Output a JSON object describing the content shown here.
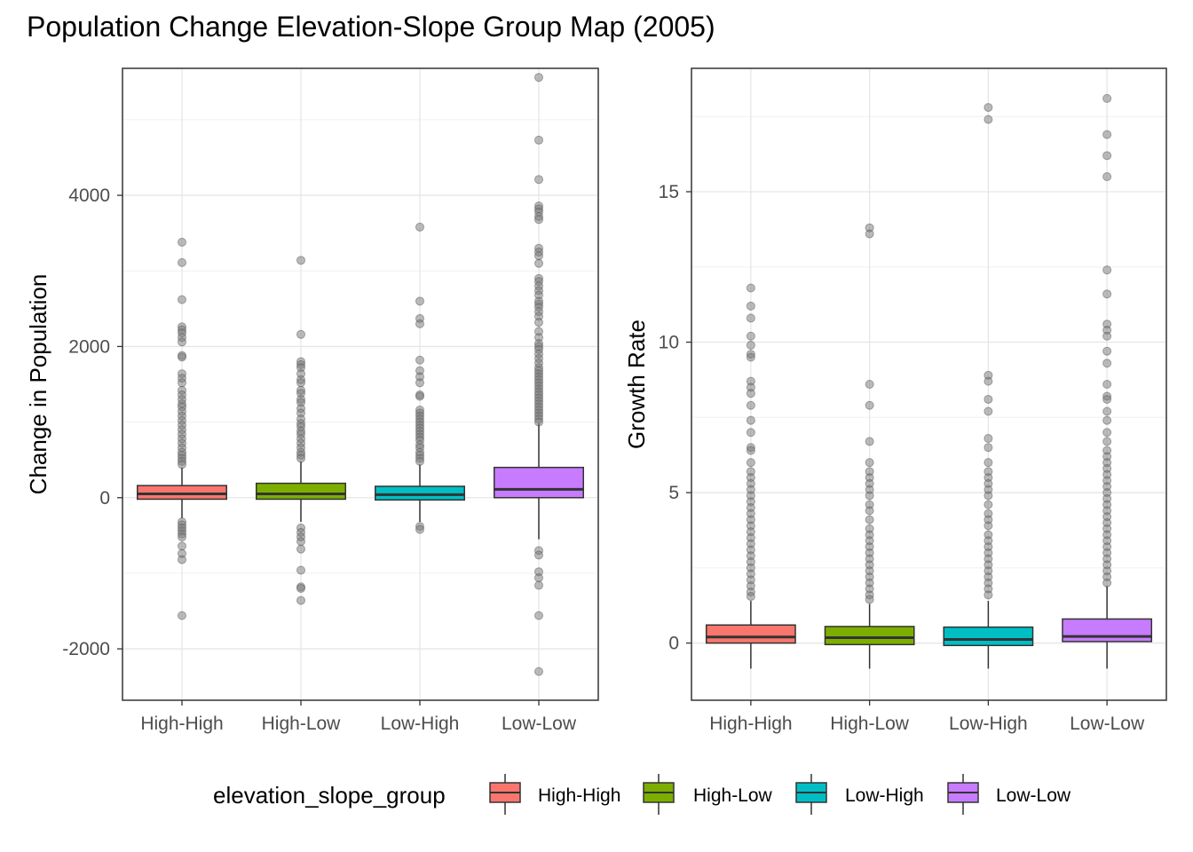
{
  "chart_data": {
    "type": "box",
    "title": "Population Change Elevation-Slope Group Map (2005)",
    "categories": [
      "High-High",
      "High-Low",
      "Low-High",
      "Low-Low"
    ],
    "colors": [
      "#F8766D",
      "#7CAE00",
      "#00BFC4",
      "#C77CFF"
    ],
    "legend": {
      "title": "elevation_slope_group",
      "position": "bottom",
      "entries": [
        "High-High",
        "High-Low",
        "Low-High",
        "Low-Low"
      ]
    },
    "grid": true,
    "panels": [
      {
        "ylabel": "Change in Population",
        "ylim": [
          -2680,
          5680
        ],
        "yticks": [
          -2000,
          0,
          2000,
          4000
        ],
        "ytick_labels": [
          "-2000",
          "0",
          "2000",
          "4000"
        ],
        "boxes": [
          {
            "q1": -20,
            "median": 50,
            "q3": 160,
            "whisker_low": -270,
            "whisker_high": 400,
            "outliers": [
              3380,
              3110,
              2620,
              2260,
              2220,
              2180,
              2120,
              2060,
              1880,
              1860,
              1640,
              1580,
              1520,
              1420,
              1360,
              1300,
              1240,
              1200,
              1140,
              1080,
              1020,
              960,
              900,
              840,
              780,
              720,
              660,
              600,
              560,
              520,
              480,
              440,
              -320,
              -360,
              -400,
              -440,
              -480,
              -520,
              -640,
              -740,
              -820,
              -1560
            ]
          },
          {
            "q1": -20,
            "median": 50,
            "q3": 190,
            "whisker_low": -320,
            "whisker_high": 480,
            "outliers": [
              3140,
              2160,
              1800,
              1760,
              1720,
              1640,
              1560,
              1520,
              1420,
              1380,
              1300,
              1260,
              1180,
              1120,
              1040,
              980,
              940,
              880,
              840,
              780,
              720,
              660,
              600,
              560,
              520,
              -400,
              -460,
              -520,
              -580,
              -680,
              -960,
              -1180,
              -1200,
              -1360
            ]
          },
          {
            "q1": -30,
            "median": 40,
            "q3": 150,
            "whisker_low": -320,
            "whisker_high": 440,
            "outliers": [
              3580,
              2600,
              2370,
              2300,
              1820,
              1680,
              1600,
              1520,
              1360,
              1340,
              1160,
              1120,
              1080,
              1040,
              1000,
              960,
              920,
              880,
              840,
              800,
              760,
              700,
              660,
              600,
              560,
              520,
              480,
              -380,
              -420
            ]
          },
          {
            "q1": 0,
            "median": 110,
            "q3": 400,
            "whisker_low": -550,
            "whisker_high": 980,
            "outliers": [
              5560,
              4730,
              4210,
              3860,
              3820,
              3780,
              3720,
              3680,
              3300,
              3250,
              3200,
              3100,
              2900,
              2860,
              2800,
              2740,
              2680,
              2600,
              2560,
              2520,
              2460,
              2400,
              2320,
              2200,
              2120,
              2040,
              2000,
              1960,
              1900,
              1840,
              1780,
              1720,
              1680,
              1640,
              1600,
              1560,
              1520,
              1480,
              1440,
              1400,
              1360,
              1320,
              1280,
              1240,
              1200,
              1160,
              1120,
              1080,
              1040,
              1000,
              -700,
              -760,
              -980,
              -1060,
              -1160,
              -1560,
              -2300
            ]
          }
        ]
      },
      {
        "ylabel": "Growth Rate",
        "ylim": [
          -1.9,
          19.1
        ],
        "yticks": [
          0,
          5,
          10,
          15
        ],
        "ytick_labels": [
          "0",
          "5",
          "10",
          "15"
        ],
        "boxes": [
          {
            "q1": 0.0,
            "median": 0.2,
            "q3": 0.6,
            "whisker_low": -0.85,
            "whisker_high": 1.4,
            "outliers": [
              11.8,
              11.2,
              10.8,
              10.2,
              9.9,
              9.6,
              9.5,
              8.7,
              8.5,
              8.3,
              7.9,
              7.4,
              7.0,
              6.5,
              6.4,
              6.0,
              5.7,
              5.5,
              5.3,
              5.1,
              4.9,
              4.7,
              4.5,
              4.3,
              4.1,
              3.9,
              3.7,
              3.5,
              3.3,
              3.1,
              2.9,
              2.7,
              2.5,
              2.3,
              2.1,
              1.9,
              1.7,
              1.55
            ]
          },
          {
            "q1": -0.05,
            "median": 0.18,
            "q3": 0.55,
            "whisker_low": -0.85,
            "whisker_high": 1.3,
            "outliers": [
              13.8,
              13.6,
              8.6,
              7.9,
              6.7,
              6.0,
              5.7,
              5.5,
              5.3,
              5.1,
              4.9,
              4.6,
              4.4,
              4.1,
              3.8,
              3.6,
              3.4,
              3.2,
              3.0,
              2.8,
              2.6,
              2.4,
              2.2,
              2.0,
              1.8,
              1.6,
              1.45
            ]
          },
          {
            "q1": -0.08,
            "median": 0.12,
            "q3": 0.53,
            "whisker_low": -0.85,
            "whisker_high": 1.4,
            "outliers": [
              17.8,
              17.4,
              8.9,
              8.7,
              8.1,
              7.7,
              6.8,
              6.5,
              6.0,
              5.7,
              5.5,
              5.3,
              5.1,
              4.9,
              4.6,
              4.3,
              4.1,
              3.9,
              3.6,
              3.4,
              3.2,
              3.0,
              2.8,
              2.6,
              2.4,
              2.2,
              2.0,
              1.8,
              1.6
            ]
          },
          {
            "q1": 0.05,
            "median": 0.22,
            "q3": 0.8,
            "whisker_low": -0.85,
            "whisker_high": 1.9,
            "outliers": [
              18.1,
              16.9,
              16.2,
              15.5,
              12.4,
              11.6,
              10.6,
              10.4,
              10.2,
              9.7,
              9.3,
              8.6,
              8.2,
              8.1,
              7.7,
              7.4,
              7.0,
              6.7,
              6.4,
              6.2,
              6.0,
              5.8,
              5.6,
              5.4,
              5.2,
              5.0,
              4.8,
              4.6,
              4.4,
              4.2,
              4.0,
              3.8,
              3.6,
              3.4,
              3.2,
              3.0,
              2.8,
              2.6,
              2.4,
              2.2,
              2.0
            ]
          }
        ]
      }
    ]
  }
}
